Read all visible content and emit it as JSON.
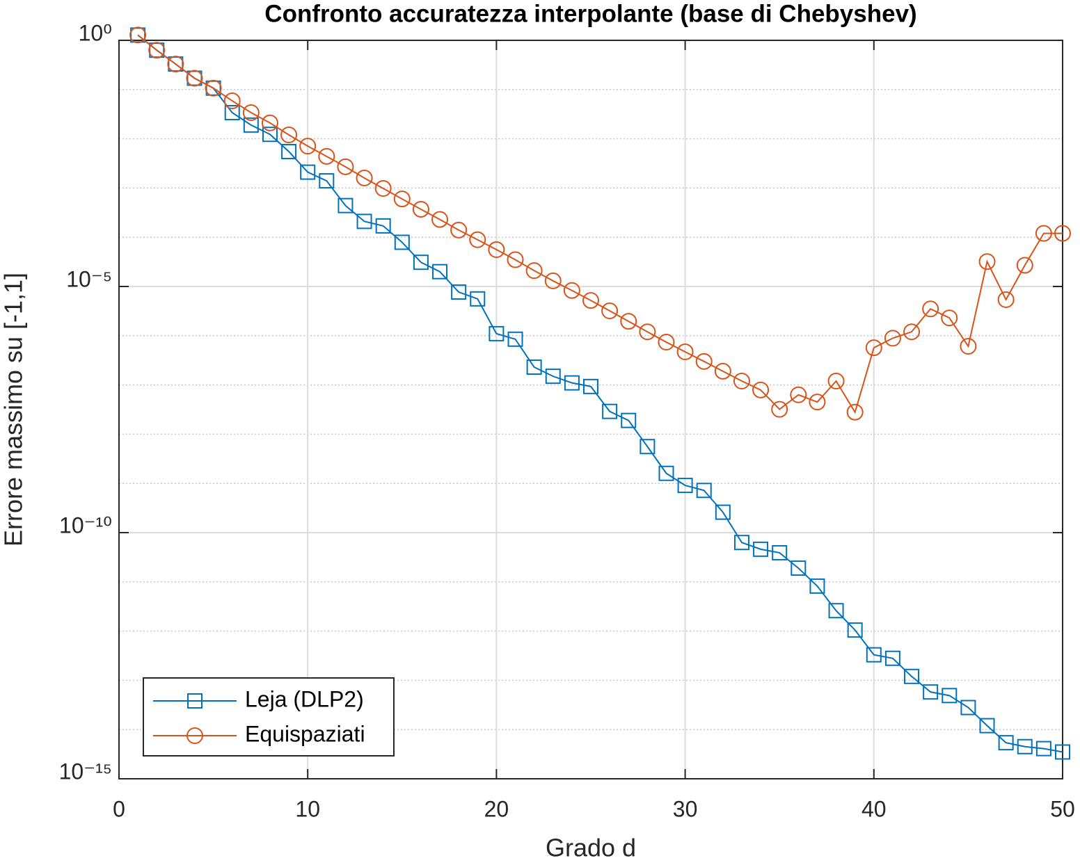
{
  "chart_data": {
    "type": "line",
    "title": "Confronto accuratezza interpolante (base di Chebyshev)",
    "xlabel": "Grado d",
    "ylabel": "Errore massimo su [-1,1]",
    "x": [
      1,
      2,
      3,
      4,
      5,
      6,
      7,
      8,
      9,
      10,
      11,
      12,
      13,
      14,
      15,
      16,
      17,
      18,
      19,
      20,
      21,
      22,
      23,
      24,
      25,
      26,
      27,
      28,
      29,
      30,
      31,
      32,
      33,
      34,
      35,
      36,
      37,
      38,
      39,
      40,
      41,
      42,
      43,
      44,
      45,
      46,
      47,
      48,
      49,
      50
    ],
    "series": [
      {
        "name": "Leja (DLP2)",
        "color": "#0072BD",
        "marker": "square",
        "values": [
          1.28,
          0.63,
          0.33,
          0.17,
          0.107,
          0.034,
          0.019,
          0.0123,
          0.0055,
          0.0021,
          0.0014,
          0.00044,
          0.00021,
          0.00017,
          7.9e-05,
          3.1e-05,
          2e-05,
          7.7e-06,
          5.6e-06,
          1.1e-06,
          8.5e-07,
          2.3e-07,
          1.5e-07,
          1.1e-07,
          9.3e-08,
          2.9e-08,
          1.9e-08,
          5.6e-09,
          1.6e-09,
          9.1e-10,
          7.2e-10,
          2.6e-10,
          6.3e-11,
          4.6e-11,
          3.9e-11,
          1.9e-11,
          8.2e-12,
          2.6e-12,
          1.05e-12,
          3.3e-13,
          2.8e-13,
          1.2e-13,
          5.8e-14,
          4.9e-14,
          2.8e-14,
          1.2e-14,
          5.4e-15,
          4.5e-15,
          4.1e-15,
          3.5e-15
        ]
      },
      {
        "name": "Equispaziati",
        "color": "#D95319",
        "marker": "circle",
        "values": [
          1.28,
          0.63,
          0.33,
          0.17,
          0.107,
          0.059,
          0.034,
          0.021,
          0.012,
          0.0071,
          0.0044,
          0.0027,
          0.0016,
          0.00098,
          0.0006,
          0.00037,
          0.00023,
          0.00014,
          8.9e-05,
          5.6e-05,
          3.5e-05,
          2.1e-05,
          1.3e-05,
          8.3e-06,
          5.2e-06,
          3.2e-06,
          1.96e-06,
          1.2e-06,
          7.4e-07,
          4.7e-07,
          3e-07,
          1.9e-07,
          1.2e-07,
          7.9e-08,
          3.2e-08,
          6.3e-08,
          4.5e-08,
          1.2e-07,
          2.8e-08,
          5.7e-07,
          8.9e-07,
          1.2e-06,
          3.5e-06,
          2.3e-06,
          6.1e-07,
          3.2e-05,
          5.4e-06,
          2.7e-05,
          0.00012,
          0.00012
        ]
      }
    ],
    "xlim": [
      0,
      50
    ],
    "xticks": [
      0,
      10,
      20,
      30,
      40,
      50
    ],
    "ylim": [
      1e-15,
      1
    ],
    "ylog": true,
    "yticks": [
      {
        "value": 1e-15,
        "label": "10⁻¹⁵"
      },
      {
        "value": 1e-10,
        "label": "10⁻¹⁰"
      },
      {
        "value": 1e-05,
        "label": "10⁻⁵"
      },
      {
        "value": 1,
        "label": "10⁰"
      }
    ],
    "yminorticks": [
      1e-14,
      1e-13,
      1e-12,
      1e-11,
      1e-09,
      1e-08,
      1e-07,
      1e-06,
      0.0001,
      0.001,
      0.01,
      0.1
    ],
    "grid": true,
    "legend": "lower-left"
  }
}
